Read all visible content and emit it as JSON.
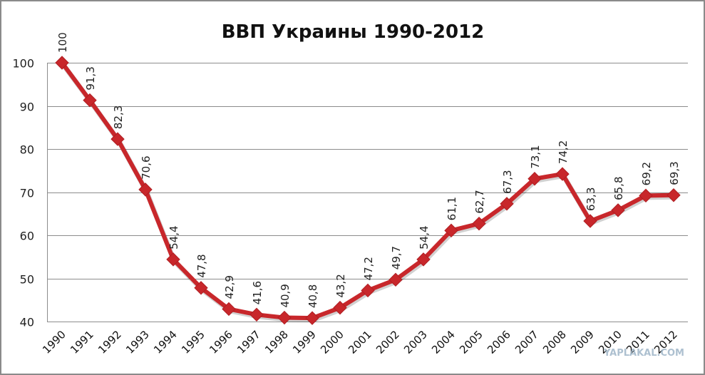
{
  "chart_data": {
    "type": "line",
    "title": "ВВП Украины 1990-2012",
    "xlabel": "",
    "ylabel": "",
    "ylim": [
      40,
      100
    ],
    "yticks": [
      100,
      90,
      80,
      70,
      60,
      50,
      40
    ],
    "grid": true,
    "legend": null,
    "categories": [
      "1990",
      "1991",
      "1992",
      "1993",
      "1994",
      "1995",
      "1996",
      "1997",
      "1998",
      "1999",
      "2000",
      "2001",
      "2002",
      "2003",
      "2004",
      "2005",
      "2006",
      "2007",
      "2008",
      "2009",
      "2010",
      "2011",
      "2012"
    ],
    "series": [
      {
        "name": "ВВП",
        "color": "#c8272b",
        "values": [
          100,
          91.3,
          82.3,
          70.6,
          54.4,
          47.8,
          42.9,
          41.6,
          40.9,
          40.8,
          43.2,
          47.2,
          49.7,
          54.4,
          61.1,
          62.7,
          67.3,
          73.1,
          74.2,
          63.3,
          65.8,
          69.2,
          69.3
        ],
        "labels": [
          "100",
          "91,3",
          "82,3",
          "70,6",
          "54,4",
          "47,8",
          "42,9",
          "41,6",
          "40,9",
          "40,8",
          "43,2",
          "47,2",
          "49,7",
          "54,4",
          "61,1",
          "62,7",
          "67,3",
          "73,1",
          "74,2",
          "63,3",
          "65,8",
          "69,2",
          "69,3"
        ]
      }
    ]
  },
  "watermark": "YAPLAKAL.COM",
  "colors": {
    "line": "#c8272b",
    "grid": "#8c8c8c",
    "frame": "#8a8a8a"
  }
}
